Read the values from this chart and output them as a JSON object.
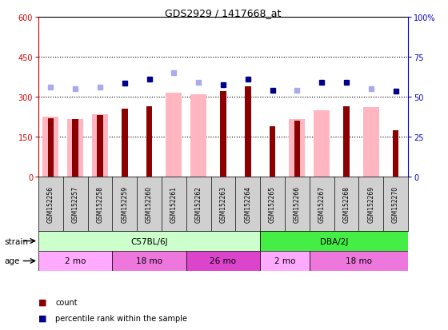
{
  "title": "GDS2929 / 1417668_at",
  "samples": [
    "GSM152256",
    "GSM152257",
    "GSM152258",
    "GSM152259",
    "GSM152260",
    "GSM152261",
    "GSM152262",
    "GSM152263",
    "GSM152264",
    "GSM152265",
    "GSM152266",
    "GSM152267",
    "GSM152268",
    "GSM152269",
    "GSM152270"
  ],
  "count_values": [
    220,
    215,
    230,
    255,
    265,
    null,
    null,
    320,
    340,
    190,
    210,
    null,
    265,
    null,
    175
  ],
  "absent_value_values": [
    225,
    215,
    235,
    null,
    null,
    315,
    310,
    null,
    null,
    null,
    215,
    250,
    null,
    260,
    null
  ],
  "percentile_rank_present": [
    null,
    null,
    null,
    350,
    365,
    null,
    null,
    345,
    365,
    325,
    null,
    355,
    355,
    null,
    320
  ],
  "percentile_rank_absent": [
    335,
    330,
    335,
    null,
    null,
    390,
    355,
    null,
    null,
    null,
    325,
    null,
    null,
    330,
    null
  ],
  "ylim_left": [
    0,
    600
  ],
  "ylim_right": [
    0,
    100
  ],
  "yticks_left": [
    0,
    150,
    300,
    450,
    600
  ],
  "yticks_right": [
    0,
    25,
    50,
    75,
    100
  ],
  "strain_groups": [
    {
      "label": "C57BL/6J",
      "start": 0,
      "end": 9,
      "color": "#CCFFCC"
    },
    {
      "label": "DBA/2J",
      "start": 9,
      "end": 15,
      "color": "#44EE44"
    }
  ],
  "age_groups": [
    {
      "label": "2 mo",
      "start": 0,
      "end": 3,
      "color": "#FFAAFF"
    },
    {
      "label": "18 mo",
      "start": 3,
      "end": 6,
      "color": "#EE77DD"
    },
    {
      "label": "26 mo",
      "start": 6,
      "end": 9,
      "color": "#DD44CC"
    },
    {
      "label": "2 mo",
      "start": 9,
      "end": 11,
      "color": "#FFAAFF"
    },
    {
      "label": "18 mo",
      "start": 11,
      "end": 15,
      "color": "#EE77DD"
    }
  ],
  "color_count": "#8B0000",
  "color_absent_value": "#FFB6C1",
  "color_rank_present": "#00008B",
  "color_rank_absent": "#AAAAEE",
  "bg_color": "#FFFFFF",
  "plot_bg_color": "#FFFFFF",
  "tick_color_left": "#CC0000",
  "tick_color_right": "#0000CC",
  "xtick_bg": "#D0D0D0"
}
